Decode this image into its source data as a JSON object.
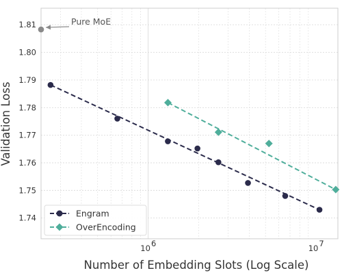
{
  "chart_data": {
    "type": "scatter",
    "title": "",
    "xlabel": "Number of Embedding Slots (Log Scale)",
    "ylabel": "Validation Loss",
    "x_scale": "log",
    "xlim": [
      230000,
      13500000
    ],
    "ylim": [
      1.7325,
      1.816
    ],
    "grid": true,
    "legend_position": "bottom-left",
    "x_ticks": [
      {
        "value": 1000000,
        "base": "10",
        "exp": "6"
      },
      {
        "value": 10000000,
        "base": "10",
        "exp": "7"
      }
    ],
    "y_ticks": [
      {
        "value": 1.74,
        "label": "1.74"
      },
      {
        "value": 1.75,
        "label": "1.75"
      },
      {
        "value": 1.76,
        "label": "1.76"
      },
      {
        "value": 1.77,
        "label": "1.77"
      },
      {
        "value": 1.78,
        "label": "1.78"
      },
      {
        "value": 1.79,
        "label": "1.79"
      },
      {
        "value": 1.8,
        "label": "1.80"
      },
      {
        "value": 1.81,
        "label": "1.81"
      }
    ],
    "series": [
      {
        "name": "Engram",
        "color": "#2b2b4b",
        "marker": "circle",
        "trend_line": "dashed",
        "points": [
          {
            "x": 262000,
            "y": 1.7882
          },
          {
            "x": 655000,
            "y": 1.776
          },
          {
            "x": 1310000,
            "y": 1.7678
          },
          {
            "x": 1966000,
            "y": 1.7652
          },
          {
            "x": 2621000,
            "y": 1.7602
          },
          {
            "x": 3932000,
            "y": 1.7527
          },
          {
            "x": 6554000,
            "y": 1.748
          },
          {
            "x": 10486000,
            "y": 1.743
          }
        ],
        "trend": [
          [
            262000,
            1.7882
          ],
          [
            10486000,
            1.743
          ]
        ]
      },
      {
        "name": "OverEncoding",
        "color": "#4fae9b",
        "marker": "diamond",
        "trend_line": "dashed",
        "points": [
          {
            "x": 1311000,
            "y": 1.7818
          },
          {
            "x": 2622000,
            "y": 1.7711
          },
          {
            "x": 5243000,
            "y": 1.767
          },
          {
            "x": 13107000,
            "y": 1.7503
          }
        ],
        "trend": [
          [
            1311000,
            1.7818
          ],
          [
            13107000,
            1.7503
          ]
        ]
      }
    ],
    "reference_point": {
      "label": "Pure MoE",
      "x": 230000,
      "y": 1.8083,
      "color": "#8a8a8a"
    },
    "colors": {
      "background": "#ffffff",
      "grid": "#dcdcdc",
      "axis_frame": "#cccccc",
      "text": "#333333"
    }
  }
}
